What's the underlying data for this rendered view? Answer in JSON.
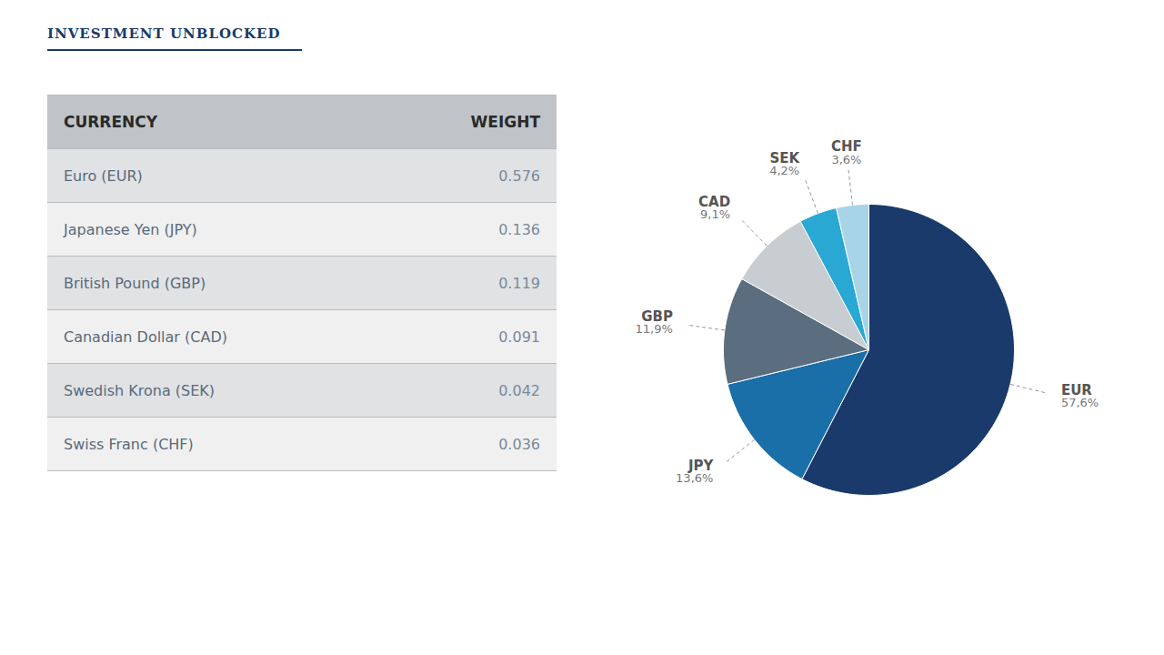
{
  "chart_data": {
    "type": "pie",
    "title": "INVESTMENT UNBLOCKED",
    "categories": [
      "EUR",
      "JPY",
      "GBP",
      "CAD",
      "SEK",
      "CHF"
    ],
    "values": [
      57.6,
      13.6,
      11.9,
      9.1,
      4.2,
      3.6
    ],
    "value_labels": [
      "57,6%",
      "13,6%",
      "11,9%",
      "9,1%",
      "4,2%",
      "3,6%"
    ],
    "colors": [
      "#1a3a6b",
      "#1a6fa8",
      "#5a6e7f",
      "#c8cdd2",
      "#29a8d4",
      "#a8d4e8"
    ],
    "data_labels": true,
    "table": {
      "headers": [
        "CURRENCY",
        "WEIGHT"
      ],
      "rows": [
        [
          "Euro (EUR)",
          "0.576"
        ],
        [
          "Japanese Yen (JPY)",
          "0.136"
        ],
        [
          "British Pound (GBP)",
          "0.119"
        ],
        [
          "Canadian Dollar (CAD)",
          "0.091"
        ],
        [
          "Swedish Krona (SEK)",
          "0.042"
        ],
        [
          "Swiss Franc (CHF)",
          "0.036"
        ]
      ]
    }
  }
}
